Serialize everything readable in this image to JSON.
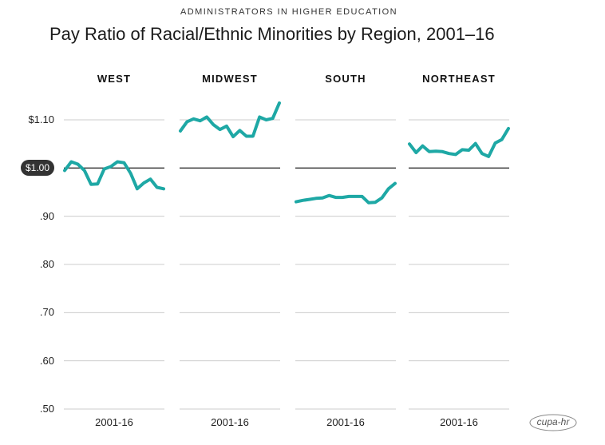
{
  "supertitle": "ADMINISTRATORS IN HIGHER EDUCATION",
  "title": "Pay Ratio of Racial/Ethnic Minorities by Region, 2001–16",
  "logo_text": "cupa-hr",
  "colors": {
    "line": "#1ea8a5",
    "grid": "#cccccc",
    "reference": "#333333"
  },
  "chart_data": {
    "type": "line",
    "title": "Pay Ratio of Racial/Ethnic Minorities by Region, 2001–16",
    "x": [
      2001,
      2002,
      2003,
      2004,
      2005,
      2006,
      2007,
      2008,
      2009,
      2010,
      2011,
      2012,
      2013,
      2014,
      2015,
      2016
    ],
    "ylim": [
      0.5,
      1.1
    ],
    "yticks": [
      {
        "value": 1.1,
        "label": "$1.10"
      },
      {
        "value": 1.0,
        "label": "$1.00",
        "highlight": true
      },
      {
        "value": 0.9,
        "label": ".90"
      },
      {
        "value": 0.8,
        "label": ".80"
      },
      {
        "value": 0.7,
        "label": ".70"
      },
      {
        "value": 0.6,
        "label": ".60"
      },
      {
        "value": 0.5,
        "label": ".50"
      }
    ],
    "grid": true,
    "reference_line": 1.0,
    "panels": [
      {
        "name": "WEST",
        "xlabel": "2001-16",
        "values": [
          0.995,
          1.013,
          1.008,
          0.995,
          0.966,
          0.967,
          0.998,
          1.003,
          1.013,
          1.011,
          0.989,
          0.957,
          0.969,
          0.977,
          0.96,
          0.957
        ]
      },
      {
        "name": "MIDWEST",
        "xlabel": "2001-16",
        "values": [
          1.077,
          1.096,
          1.102,
          1.098,
          1.106,
          1.09,
          1.08,
          1.087,
          1.065,
          1.078,
          1.066,
          1.066,
          1.106,
          1.1,
          1.103,
          1.135
        ]
      },
      {
        "name": "SOUTH",
        "xlabel": "2001-16",
        "values": [
          0.93,
          0.933,
          0.935,
          0.937,
          0.938,
          0.943,
          0.939,
          0.939,
          0.941,
          0.941,
          0.941,
          0.928,
          0.929,
          0.938,
          0.957,
          0.968
        ]
      },
      {
        "name": "NORTHEAST",
        "xlabel": "2001-16",
        "values": [
          1.05,
          1.032,
          1.046,
          1.034,
          1.035,
          1.034,
          1.03,
          1.028,
          1.038,
          1.037,
          1.051,
          1.03,
          1.024,
          1.052,
          1.059,
          1.082
        ]
      }
    ]
  }
}
